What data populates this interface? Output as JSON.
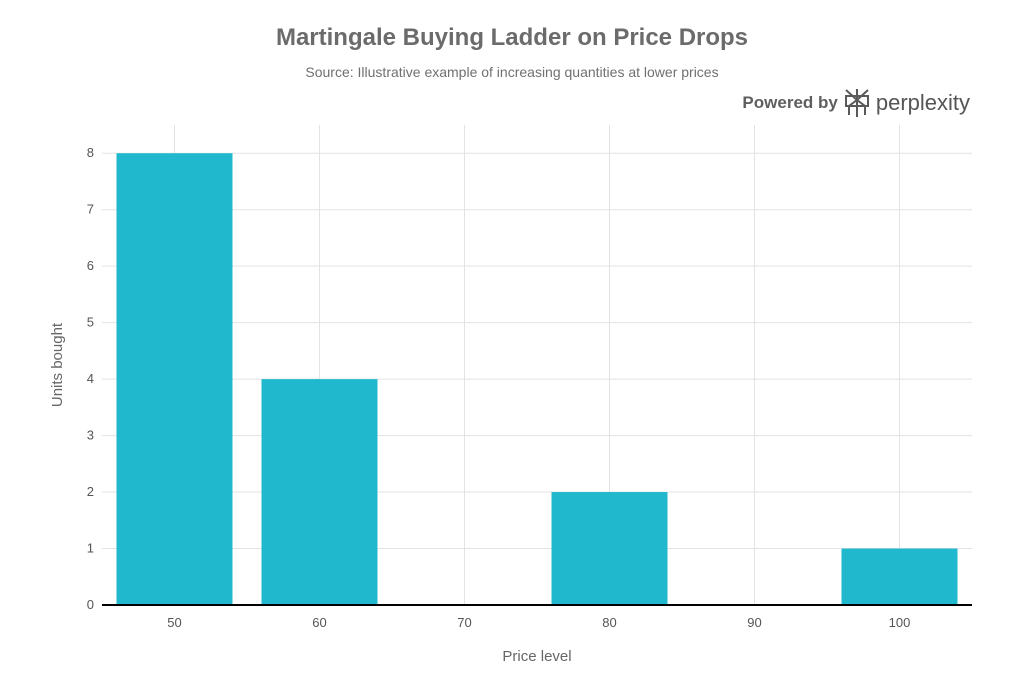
{
  "header": {
    "title": "Martingale Buying Ladder on Price Drops",
    "subtitle": "Source: Illustrative example of increasing quantities at lower prices",
    "powered_by": "Powered by",
    "brand_name": "perplexity",
    "brand_icon": "perplexity-logo-icon"
  },
  "chart_data": {
    "type": "bar",
    "x": [
      50,
      60,
      80,
      100
    ],
    "values": [
      8,
      4,
      2,
      1
    ],
    "bar_width": 8,
    "x_ticks": [
      50,
      60,
      70,
      80,
      90,
      100
    ],
    "y_ticks": [
      0,
      1,
      2,
      3,
      4,
      5,
      6,
      7,
      8
    ],
    "xlim": [
      45,
      105
    ],
    "ylim": [
      0,
      8.5
    ],
    "xlabel": "Price level",
    "ylabel": "Units bought",
    "grid": true,
    "colors": {
      "bar": "#1fb8cd",
      "grid": "#e3e3e3",
      "axis": "#000000"
    }
  }
}
